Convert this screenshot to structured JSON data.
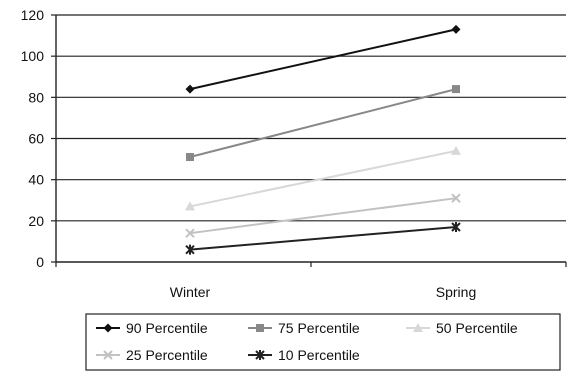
{
  "chart_data": {
    "type": "line",
    "title": "",
    "xlabel": "",
    "ylabel": "",
    "categories": [
      "Winter",
      "Spring"
    ],
    "ylim": [
      0,
      120
    ],
    "yticks": [
      0,
      20,
      40,
      60,
      80,
      100,
      120
    ],
    "grid": "horizontal",
    "legend_position": "bottom",
    "series": [
      {
        "name": "90 Percentile",
        "values": [
          84,
          113
        ],
        "color": "#111111",
        "marker": "diamond"
      },
      {
        "name": "75 Percentile",
        "values": [
          51,
          84
        ],
        "color": "#888888",
        "marker": "square"
      },
      {
        "name": "50 Percentile",
        "values": [
          27,
          54
        ],
        "color": "#d8d8d8",
        "marker": "triangle"
      },
      {
        "name": "25 Percentile",
        "values": [
          14,
          31
        ],
        "color": "#c2c2c2",
        "marker": "x"
      },
      {
        "name": "10 Percentile",
        "values": [
          6,
          17
        ],
        "color": "#222222",
        "marker": "asterisk"
      }
    ]
  }
}
